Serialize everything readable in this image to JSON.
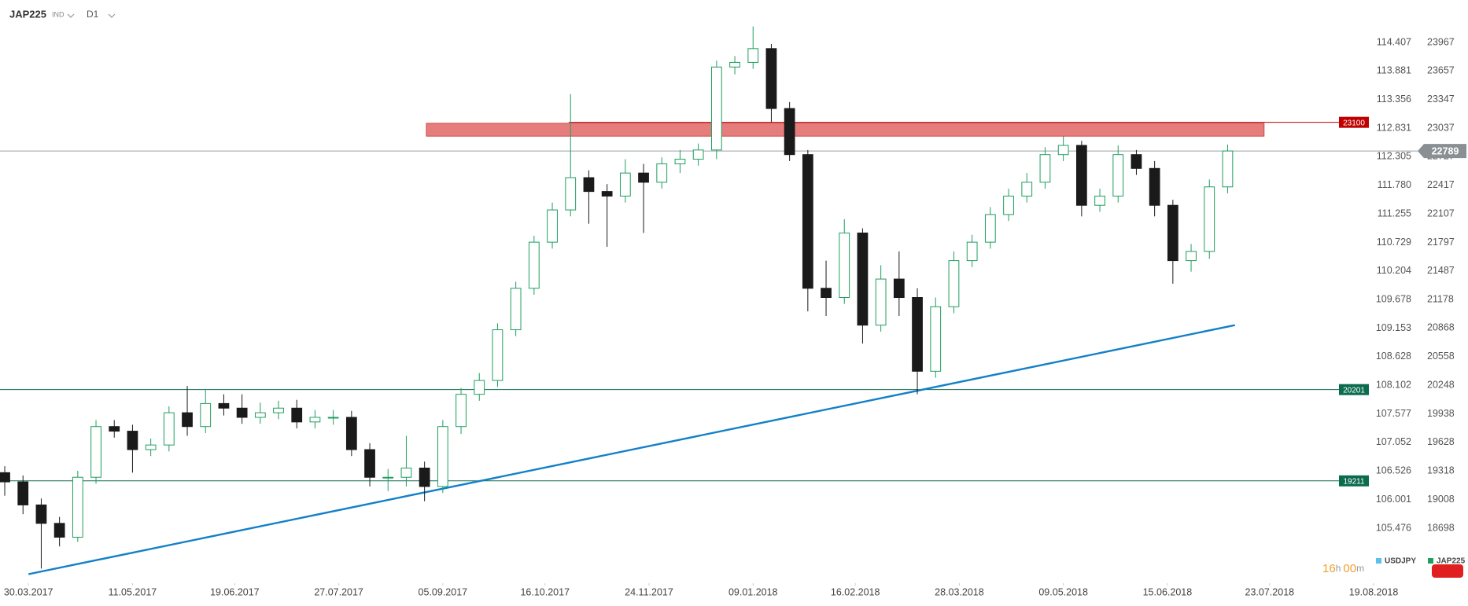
{
  "chart_data": {
    "type": "candlestick",
    "symbol": "JAP225",
    "market": "IND",
    "timeframe": "D1",
    "xlim": [
      -0.26,
      80.17
    ],
    "xticks": [
      {
        "value": 1.3,
        "label": "30.03.2017"
      },
      {
        "value": 7,
        "label": "11.05.2017"
      },
      {
        "value": 12.6,
        "label": "19.06.2017"
      },
      {
        "value": 18.3,
        "label": "27.07.2017"
      },
      {
        "value": 24,
        "label": "05.09.2017"
      },
      {
        "value": 29.6,
        "label": "16.10.2017"
      },
      {
        "value": 35.3,
        "label": "24.11.2017"
      },
      {
        "value": 41,
        "label": "09.01.2018"
      },
      {
        "value": 46.6,
        "label": "16.02.2018"
      },
      {
        "value": 52.3,
        "label": "28.03.2018"
      },
      {
        "value": 58,
        "label": "09.05.2018"
      },
      {
        "value": 63.7,
        "label": "15.06.2018"
      },
      {
        "value": 69.3,
        "label": "23.07.2018"
      },
      {
        "value": 75,
        "label": "19.08.2018"
      }
    ],
    "ylim": [
      18118,
      24427
    ],
    "yticks": [
      23967,
      23657,
      23347,
      23037,
      22727,
      22417,
      22107,
      21797,
      21487,
      21178,
      20868,
      20558,
      20248,
      19938,
      19628,
      19318,
      19008,
      18698
    ],
    "y2lim": [
      104.493,
      115.187
    ],
    "y2ticks": [
      114.407,
      113.881,
      113.356,
      112.831,
      112.305,
      {
        "value": 111.78,
        "label": "111.780"
      },
      111.255,
      110.729,
      110.204,
      109.678,
      109.153,
      108.628,
      108.102,
      107.577,
      107.052,
      106.526,
      106.001,
      105.476
    ],
    "series": [
      {
        "name": "JAP225",
        "up_color": "#1f9e5e",
        "down_color": "#1a1a1a",
        "open": [
          19300,
          19200,
          18950,
          18750,
          18600,
          19250,
          19800,
          19750,
          19550,
          19600,
          19950,
          19800,
          20050,
          20000,
          19900,
          19950,
          20000,
          19850,
          19900,
          19900,
          19550,
          19250,
          19250,
          19350,
          19150,
          19800,
          20150,
          20300,
          20850,
          21300,
          21800,
          22150,
          22500,
          22350,
          22300,
          22550,
          22450,
          22650,
          22700,
          22800,
          23700,
          23750,
          23900,
          23250,
          22750,
          21300,
          21200,
          21900,
          20900,
          21400,
          21200,
          20400,
          21100,
          21600,
          21800,
          22100,
          22300,
          22450,
          22750,
          22850,
          22200,
          22300,
          22750,
          22600,
          22200,
          21600,
          21700,
          22400
        ],
        "high": [
          19370,
          19270,
          19020,
          18820,
          19320,
          19870,
          19870,
          19820,
          19670,
          20020,
          20240,
          20200,
          20150,
          20150,
          20060,
          20080,
          20090,
          19980,
          19980,
          19970,
          19620,
          19340,
          19700,
          19420,
          19870,
          20220,
          20380,
          20920,
          21370,
          21870,
          22230,
          23407,
          22580,
          22430,
          22700,
          22650,
          22720,
          22800,
          22870,
          23770,
          23820,
          24140,
          23950,
          23320,
          22800,
          21600,
          22050,
          21950,
          21550,
          21700,
          21300,
          21200,
          21700,
          21880,
          22180,
          22380,
          22550,
          22830,
          22950,
          22900,
          22380,
          22850,
          22800,
          22680,
          22260,
          21780,
          22480,
          22860
        ],
        "low": [
          19050,
          18850,
          18260,
          18500,
          18550,
          19180,
          19680,
          19300,
          19480,
          19530,
          19700,
          19730,
          19920,
          19830,
          19830,
          19880,
          19780,
          19780,
          19820,
          19480,
          19150,
          19100,
          19150,
          18990,
          19080,
          19720,
          20080,
          20230,
          20780,
          21230,
          21730,
          22080,
          22000,
          21750,
          22230,
          21900,
          22380,
          22550,
          22630,
          22700,
          23620,
          23680,
          23100,
          22680,
          21050,
          21000,
          21130,
          20700,
          20830,
          21000,
          20150,
          20330,
          21030,
          21530,
          21730,
          22030,
          22230,
          22380,
          22680,
          22080,
          22130,
          22230,
          22530,
          22080,
          21350,
          21480,
          21620,
          22330
        ],
        "close": [
          19200,
          18950,
          18750,
          18600,
          19250,
          19800,
          19750,
          19550,
          19600,
          19950,
          19800,
          20050,
          20000,
          19900,
          19950,
          20000,
          19850,
          19900,
          19900,
          19550,
          19250,
          19250,
          19350,
          19150,
          19800,
          20150,
          20300,
          20850,
          21300,
          21800,
          22150,
          22500,
          22350,
          22300,
          22550,
          22450,
          22650,
          22700,
          22800,
          23700,
          23750,
          23900,
          23250,
          22750,
          21300,
          21200,
          21900,
          20900,
          21400,
          21200,
          20400,
          21100,
          21600,
          21800,
          22100,
          22300,
          22450,
          22750,
          22850,
          22200,
          22300,
          22750,
          22600,
          22200,
          21600,
          21700,
          22400,
          22789
        ]
      }
    ],
    "zone": {
      "x": [
        23.1,
        69
      ],
      "y": [
        22950,
        23090
      ],
      "color": "#e06666"
    },
    "levels": [
      {
        "value": 23100,
        "color": "#c00000",
        "x_start": 30.9
      },
      {
        "value": 20201,
        "color": "#0b6b4d",
        "x_start": -0.26
      },
      {
        "value": 19211,
        "color": "#0b6b4d",
        "x_start": -0.26
      }
    ],
    "trendline": {
      "x": [
        1.3,
        67.4
      ],
      "y": [
        18199,
        20900
      ],
      "color": "#1380c8"
    },
    "last_price": {
      "value": 22789,
      "color": "#8a8f94"
    },
    "legend": [
      {
        "name": "USDJPY",
        "color": "#5bc0eb"
      },
      {
        "name": "JAP225",
        "color": "#1f9e5e"
      }
    ],
    "countdown": {
      "hours": "16",
      "hours_unit": "h",
      "minutes": "00",
      "minutes_unit": "m"
    }
  }
}
